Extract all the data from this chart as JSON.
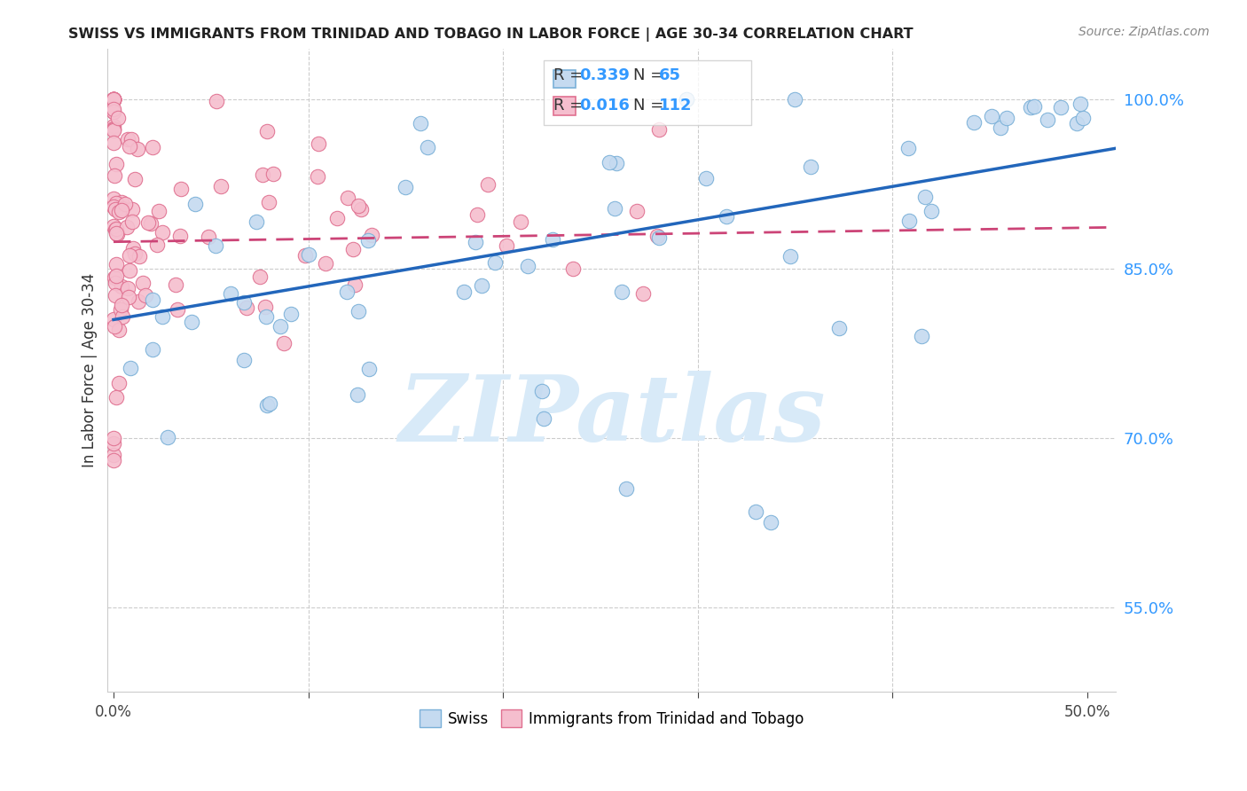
{
  "title": "SWISS VS IMMIGRANTS FROM TRINIDAD AND TOBAGO IN LABOR FORCE | AGE 30-34 CORRELATION CHART",
  "source": "Source: ZipAtlas.com",
  "ylabel": "In Labor Force | Age 30-34",
  "xlim": [
    -0.003,
    0.515
  ],
  "ylim": [
    0.475,
    1.045
  ],
  "yticks": [
    0.55,
    0.7,
    0.85,
    1.0
  ],
  "ytick_labels": [
    "55.0%",
    "70.0%",
    "85.0%",
    "100.0%"
  ],
  "xticks": [
    0.0,
    0.1,
    0.2,
    0.3,
    0.4,
    0.5
  ],
  "swiss_color": "#c5daf0",
  "swiss_edge_color": "#7ab0d8",
  "tt_color": "#f5bece",
  "tt_edge_color": "#e07090",
  "trend_blue": "#2266bb",
  "trend_pink": "#cc4477",
  "R_swiss": 0.339,
  "N_swiss": 65,
  "R_tt": 0.016,
  "N_tt": 112,
  "watermark": "ZIPatlas",
  "watermark_color": "#d8eaf8"
}
